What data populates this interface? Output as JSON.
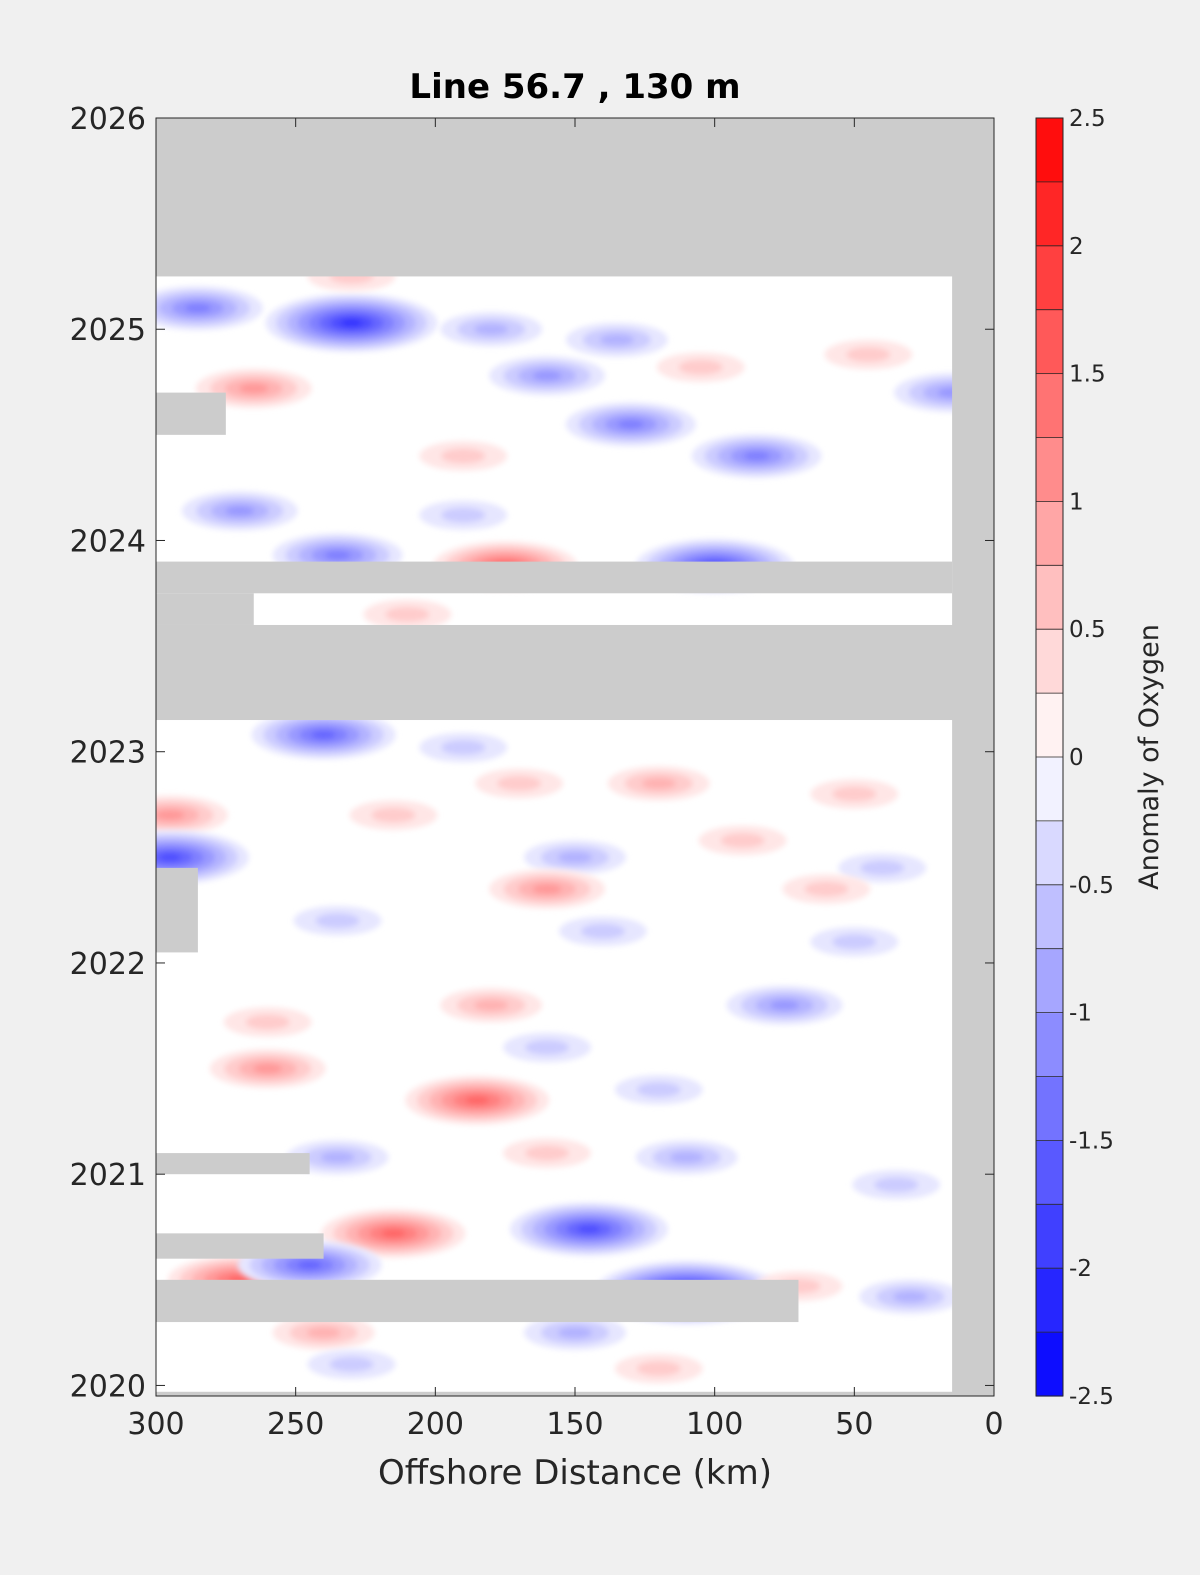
{
  "chart_data": {
    "type": "heatmap",
    "title": "Line 56.7 , 130 m",
    "xlabel": "Offshore Distance (km)",
    "ylabel": "",
    "xlim": [
      300,
      0
    ],
    "ylim": [
      2019.95,
      2026
    ],
    "x_ticks": [
      "300",
      "250",
      "200",
      "150",
      "100",
      "50",
      "0"
    ],
    "x_tick_values": [
      300,
      250,
      200,
      150,
      100,
      50,
      0
    ],
    "y_ticks": [
      "2020",
      "2021",
      "2022",
      "2023",
      "2024",
      "2025",
      "2026"
    ],
    "y_tick_values": [
      2020,
      2021,
      2022,
      2023,
      2024,
      2025,
      2026
    ],
    "colorbar": {
      "label": "Anomaly of Oxygen",
      "range": [
        -2.5,
        2.5
      ],
      "step": 0.25,
      "tick_values": [
        2.5,
        2,
        1.5,
        1,
        0.5,
        0,
        -0.5,
        -1,
        -1.5,
        -2,
        -2.5
      ],
      "tick_labels": [
        "2.5",
        "2",
        "1.5",
        "1",
        "0.5",
        "0",
        "-0.5",
        "-1",
        "-1.5",
        "-2",
        "-2.5"
      ]
    },
    "no_data_color": "#cccccc",
    "no_data_regions": [
      {
        "x": [
          300,
          0
        ],
        "y": [
          2025.25,
          2026
        ]
      },
      {
        "x": [
          15,
          0
        ],
        "y": [
          2019.95,
          2026
        ]
      },
      {
        "x": [
          300,
          0
        ],
        "y": [
          2023.15,
          2023.6
        ]
      },
      {
        "x": [
          300,
          15
        ],
        "y": [
          2023.75,
          2023.9
        ]
      },
      {
        "x": [
          300,
          265
        ],
        "y": [
          2023.6,
          2023.75
        ]
      },
      {
        "x": [
          300,
          275
        ],
        "y": [
          2024.5,
          2024.7
        ]
      },
      {
        "x": [
          300,
          285
        ],
        "y": [
          2022.05,
          2022.45
        ]
      },
      {
        "x": [
          300,
          245
        ],
        "y": [
          2021.0,
          2021.1
        ]
      },
      {
        "x": [
          300,
          240
        ],
        "y": [
          2020.6,
          2020.72
        ]
      },
      {
        "x": [
          300,
          70
        ],
        "y": [
          2020.3,
          2020.5
        ]
      },
      {
        "x": [
          300,
          0
        ],
        "y": [
          2019.95,
          2019.97
        ]
      }
    ],
    "anomaly_features": [
      {
        "x": 230,
        "y": 2025.03,
        "value": -2.1
      },
      {
        "x": 285,
        "y": 2025.1,
        "value": -1.4
      },
      {
        "x": 180,
        "y": 2025.0,
        "value": -0.8
      },
      {
        "x": 135,
        "y": 2024.95,
        "value": -0.9
      },
      {
        "x": 230,
        "y": 2025.25,
        "value": 0.7
      },
      {
        "x": 265,
        "y": 2024.72,
        "value": 1.2
      },
      {
        "x": 160,
        "y": 2024.78,
        "value": -1.2
      },
      {
        "x": 130,
        "y": 2024.55,
        "value": -1.4
      },
      {
        "x": 85,
        "y": 2024.4,
        "value": -1.3
      },
      {
        "x": 45,
        "y": 2024.88,
        "value": 0.6
      },
      {
        "x": 105,
        "y": 2024.82,
        "value": 0.6
      },
      {
        "x": 15,
        "y": 2024.7,
        "value": -1.0
      },
      {
        "x": 190,
        "y": 2024.4,
        "value": 0.6
      },
      {
        "x": 270,
        "y": 2024.14,
        "value": -1.0
      },
      {
        "x": 190,
        "y": 2024.12,
        "value": -0.6
      },
      {
        "x": 235,
        "y": 2023.93,
        "value": -1.4
      },
      {
        "x": 175,
        "y": 2023.88,
        "value": 1.5
      },
      {
        "x": 100,
        "y": 2023.88,
        "value": -1.9
      },
      {
        "x": 210,
        "y": 2023.65,
        "value": 0.5
      },
      {
        "x": 240,
        "y": 2023.08,
        "value": -1.5
      },
      {
        "x": 190,
        "y": 2023.02,
        "value": -0.6
      },
      {
        "x": 295,
        "y": 2022.7,
        "value": 1.1
      },
      {
        "x": 215,
        "y": 2022.7,
        "value": 0.7
      },
      {
        "x": 170,
        "y": 2022.85,
        "value": 0.6
      },
      {
        "x": 120,
        "y": 2022.85,
        "value": 0.8
      },
      {
        "x": 50,
        "y": 2022.8,
        "value": 0.7
      },
      {
        "x": 295,
        "y": 2022.5,
        "value": -1.8
      },
      {
        "x": 150,
        "y": 2022.5,
        "value": -0.9
      },
      {
        "x": 90,
        "y": 2022.58,
        "value": 0.6
      },
      {
        "x": 40,
        "y": 2022.45,
        "value": -0.7
      },
      {
        "x": 160,
        "y": 2022.35,
        "value": 1.0
      },
      {
        "x": 60,
        "y": 2022.35,
        "value": 0.7
      },
      {
        "x": 235,
        "y": 2022.2,
        "value": -0.5
      },
      {
        "x": 140,
        "y": 2022.15,
        "value": -0.6
      },
      {
        "x": 50,
        "y": 2022.1,
        "value": -0.6
      },
      {
        "x": 75,
        "y": 2021.8,
        "value": -1.1
      },
      {
        "x": 260,
        "y": 2021.72,
        "value": 0.6
      },
      {
        "x": 180,
        "y": 2021.8,
        "value": 0.8
      },
      {
        "x": 160,
        "y": 2021.6,
        "value": -0.6
      },
      {
        "x": 260,
        "y": 2021.5,
        "value": 1.1
      },
      {
        "x": 185,
        "y": 2021.35,
        "value": 1.7
      },
      {
        "x": 120,
        "y": 2021.4,
        "value": -0.5
      },
      {
        "x": 110,
        "y": 2021.08,
        "value": -0.9
      },
      {
        "x": 235,
        "y": 2021.08,
        "value": -0.9
      },
      {
        "x": 160,
        "y": 2021.1,
        "value": 0.5
      },
      {
        "x": 35,
        "y": 2020.95,
        "value": -0.7
      },
      {
        "x": 215,
        "y": 2020.72,
        "value": 1.5
      },
      {
        "x": 145,
        "y": 2020.74,
        "value": -1.9
      },
      {
        "x": 270,
        "y": 2020.5,
        "value": 1.6
      },
      {
        "x": 245,
        "y": 2020.57,
        "value": -1.6
      },
      {
        "x": 110,
        "y": 2020.44,
        "value": -2.4
      },
      {
        "x": 30,
        "y": 2020.42,
        "value": -0.9
      },
      {
        "x": 70,
        "y": 2020.47,
        "value": 0.6
      },
      {
        "x": 240,
        "y": 2020.25,
        "value": 0.9
      },
      {
        "x": 150,
        "y": 2020.25,
        "value": -0.8
      },
      {
        "x": 230,
        "y": 2020.1,
        "value": -0.6
      },
      {
        "x": 120,
        "y": 2020.08,
        "value": 0.5
      }
    ]
  }
}
